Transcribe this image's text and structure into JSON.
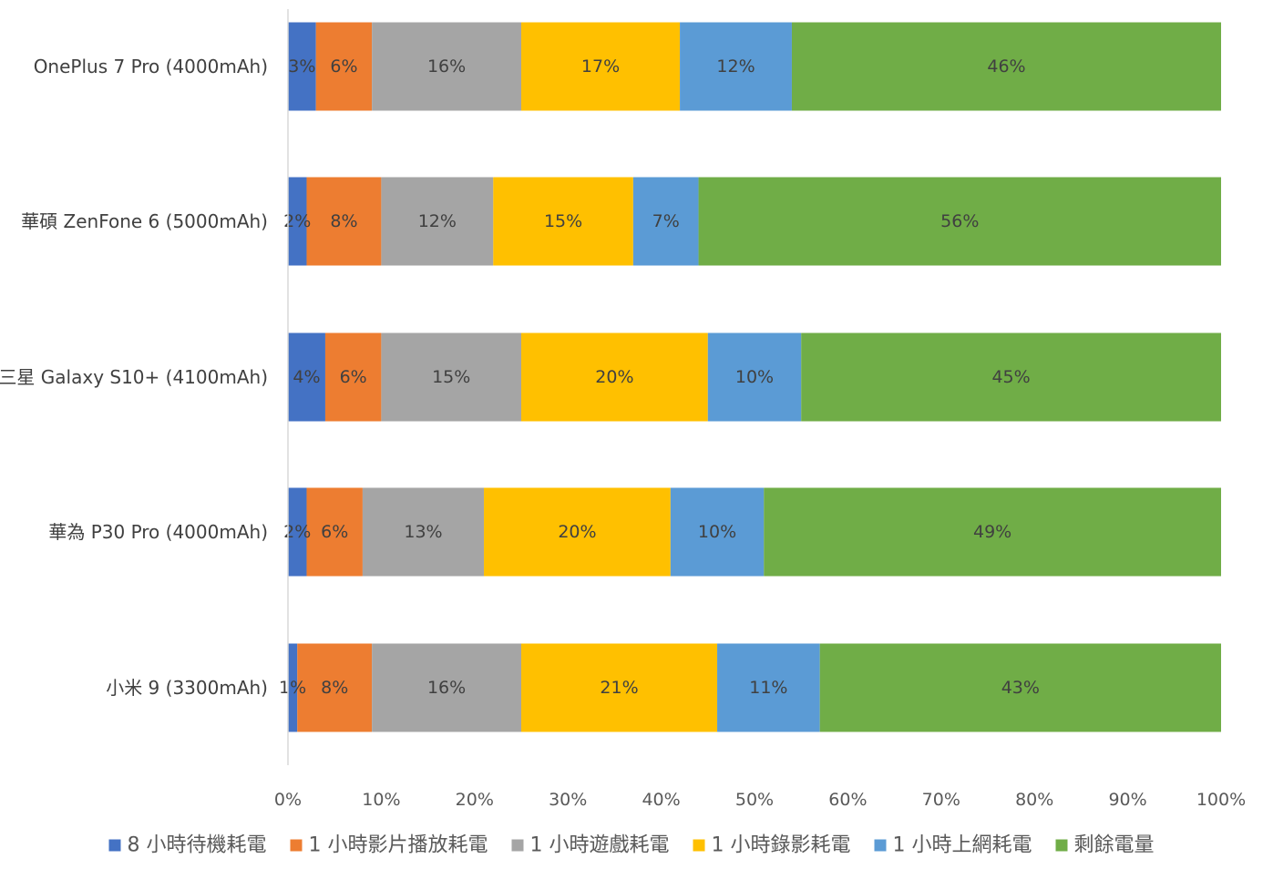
{
  "chart_data": {
    "type": "bar",
    "orientation": "horizontal",
    "stacked": "percent",
    "categories": [
      "OnePlus 7 Pro (4000mAh)",
      "華碩 ZenFone 6 (5000mAh)",
      "三星 Galaxy S10+ (4100mAh)",
      "華為 P30 Pro (4000mAh)",
      "小米 9 (3300mAh)"
    ],
    "series": [
      {
        "name": "8 小時待機耗電",
        "color": "#4472C4",
        "values": [
          3,
          2,
          4,
          2,
          1
        ]
      },
      {
        "name": "1 小時影片播放耗電",
        "color": "#ED7D31",
        "values": [
          6,
          8,
          6,
          6,
          8
        ]
      },
      {
        "name": "1 小時遊戲耗電",
        "color": "#A5A5A5",
        "values": [
          16,
          12,
          15,
          13,
          16
        ]
      },
      {
        "name": "1 小時錄影耗電",
        "color": "#FFC000",
        "values": [
          17,
          15,
          20,
          20,
          21
        ]
      },
      {
        "name": "1 小時上網耗電",
        "color": "#5B9BD5",
        "values": [
          12,
          7,
          10,
          10,
          11
        ]
      },
      {
        "name": "剩餘電量",
        "color": "#70AD47",
        "values": [
          46,
          56,
          45,
          49,
          43
        ]
      }
    ],
    "data_label_suffix": "%",
    "xlim": [
      0,
      100
    ],
    "x_ticks": [
      "0%",
      "10%",
      "20%",
      "30%",
      "40%",
      "50%",
      "60%",
      "70%",
      "80%",
      "90%",
      "100%"
    ],
    "grid": false,
    "legend_position": "bottom",
    "title": "",
    "xlabel": "",
    "ylabel": ""
  }
}
